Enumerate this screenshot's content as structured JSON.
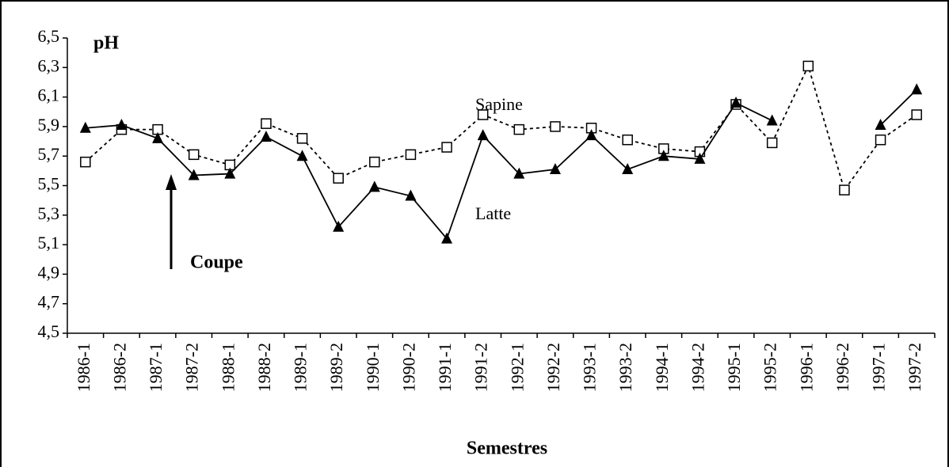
{
  "chart_data": {
    "type": "line",
    "categories": [
      "1986-1",
      "1986-2",
      "1987-1",
      "1987-2",
      "1988-1",
      "1988-2",
      "1989-1",
      "1989-2",
      "1990-1",
      "1990-2",
      "1991-1",
      "1991-2",
      "1992-1",
      "1992-2",
      "1993-1",
      "1993-2",
      "1994-1",
      "1994-2",
      "1995-1",
      "1995-2",
      "1996-1",
      "1996-2",
      "1997-1",
      "1997-2"
    ],
    "series": [
      {
        "name": "Sapine",
        "color": "#000000",
        "values": [
          5.66,
          5.88,
          5.88,
          5.71,
          5.64,
          5.92,
          5.82,
          5.55,
          5.66,
          5.71,
          5.76,
          5.98,
          5.88,
          5.9,
          5.89,
          5.81,
          5.75,
          5.73,
          6.05,
          5.79,
          6.31,
          5.47,
          5.81,
          5.98
        ]
      },
      {
        "name": "Latte",
        "color": "#000000",
        "values": [
          5.89,
          5.91,
          5.82,
          5.57,
          5.58,
          5.83,
          5.7,
          5.22,
          5.49,
          5.43,
          5.14,
          5.84,
          5.58,
          5.61,
          5.84,
          5.61,
          5.7,
          5.68,
          6.06,
          5.94,
          null,
          null,
          5.91,
          6.15
        ]
      }
    ],
    "y_axis_title": "pH",
    "x_axis_title": "Semestres",
    "annotation": "Coupe",
    "ylim": [
      4.5,
      6.5
    ],
    "yticks": [
      {
        "value": 4.5,
        "label": "4,5"
      },
      {
        "value": 4.7,
        "label": "4,7"
      },
      {
        "value": 4.9,
        "label": "4,9"
      },
      {
        "value": 5.1,
        "label": "5,1"
      },
      {
        "value": 5.3,
        "label": "5,3"
      },
      {
        "value": 5.5,
        "label": "5,5"
      },
      {
        "value": 5.7,
        "label": "5,7"
      },
      {
        "value": 5.9,
        "label": "5,9"
      },
      {
        "value": 6.1,
        "label": "6,1"
      },
      {
        "value": 6.3,
        "label": "6,3"
      },
      {
        "value": 6.5,
        "label": "6,5"
      }
    ],
    "grid": false
  }
}
